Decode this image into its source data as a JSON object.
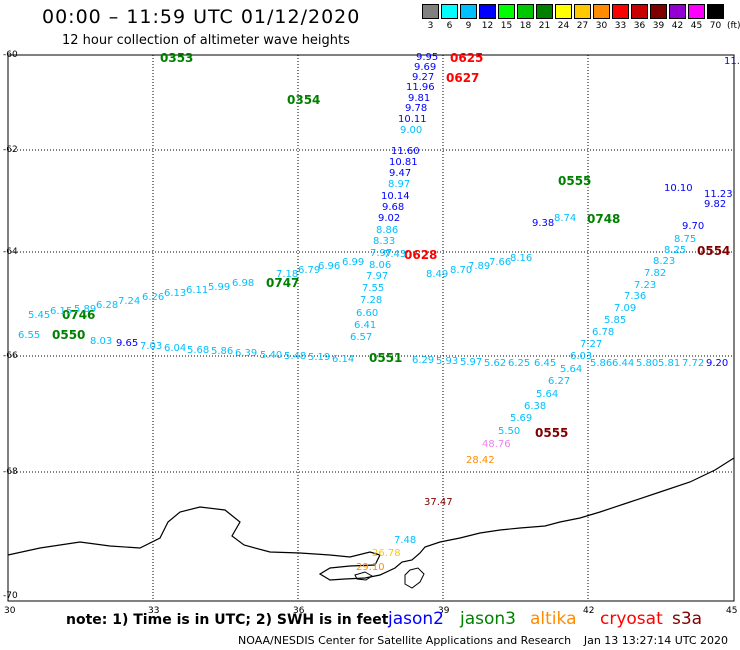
{
  "title": "00:00 – 11:59 UTC 01/12/2020",
  "subtitle": "12 hour collection of altimeter wave heights",
  "legend": {
    "unit": "(ft)",
    "levels": [
      {
        "label": "3",
        "color": "#808080"
      },
      {
        "label": "6",
        "color": "#00ffff"
      },
      {
        "label": "9",
        "color": "#00bfff"
      },
      {
        "label": "12",
        "color": "#0000ff"
      },
      {
        "label": "15",
        "color": "#00ff00"
      },
      {
        "label": "18",
        "color": "#00c800"
      },
      {
        "label": "21",
        "color": "#008000"
      },
      {
        "label": "24",
        "color": "#ffff00"
      },
      {
        "label": "27",
        "color": "#ffc800"
      },
      {
        "label": "30",
        "color": "#ff8c00"
      },
      {
        "label": "33",
        "color": "#ff0000"
      },
      {
        "label": "36",
        "color": "#c80000"
      },
      {
        "label": "39",
        "color": "#800000"
      },
      {
        "label": "42",
        "color": "#9400d3"
      },
      {
        "label": "45",
        "color": "#ff00ff"
      },
      {
        "label": "70",
        "color": "#000000"
      }
    ]
  },
  "axes": {
    "lat_labels": [
      "-60",
      "-62",
      "-64",
      "-66",
      "-68",
      "-70"
    ],
    "lon_labels": [
      "30",
      "33",
      "36",
      "39",
      "42",
      "45"
    ]
  },
  "note": "note: 1) Time is in UTC; 2) SWH is in feet",
  "satellites": [
    {
      "name": "jason2",
      "color": "#0000ff"
    },
    {
      "name": "jason3",
      "color": "#008000"
    },
    {
      "name": "altika",
      "color": "#ff8c00"
    },
    {
      "name": "cryosat",
      "color": "#ff0000"
    },
    {
      "name": "s3a",
      "color": "#800000"
    }
  ],
  "footer": {
    "credit": "NOAA/NESDIS Center for Satellite Applications and Research",
    "timestamp": "Jan 13 13:27:14 UTC 2020"
  },
  "time_labels": [
    {
      "text": "0353",
      "color": "#008000"
    },
    {
      "text": "0354",
      "color": "#008000"
    },
    {
      "text": "0555",
      "color": "#008000"
    },
    {
      "text": "0748",
      "color": "#008000"
    },
    {
      "text": "0747",
      "color": "#008000"
    },
    {
      "text": "0746",
      "color": "#008000"
    },
    {
      "text": "0550",
      "color": "#008000"
    },
    {
      "text": "0551",
      "color": "#008000"
    },
    {
      "text": "0625",
      "color": "#ff0000"
    },
    {
      "text": "0627",
      "color": "#ff0000"
    },
    {
      "text": "0628",
      "color": "#ff0000"
    },
    {
      "text": "0554",
      "color": "#800000"
    },
    {
      "text": "0555",
      "color": "#800000"
    }
  ],
  "wave_values": [
    {
      "text": "9.95",
      "color": "#0000ff"
    },
    {
      "text": "9.69",
      "color": "#0000ff"
    },
    {
      "text": "9.27",
      "color": "#0000ff"
    },
    {
      "text": "11.96",
      "color": "#0000ff"
    },
    {
      "text": "9.81",
      "color": "#0000ff"
    },
    {
      "text": "9.78",
      "color": "#0000ff"
    },
    {
      "text": "10.11",
      "color": "#0000ff"
    },
    {
      "text": "9.00",
      "color": "#00bfff"
    },
    {
      "text": "11.60",
      "color": "#0000ff"
    },
    {
      "text": "10.81",
      "color": "#0000ff"
    },
    {
      "text": "9.47",
      "color": "#0000ff"
    },
    {
      "text": "8.97",
      "color": "#00bfff"
    },
    {
      "text": "10.14",
      "color": "#0000ff"
    },
    {
      "text": "9.68",
      "color": "#0000ff"
    },
    {
      "text": "9.02",
      "color": "#0000ff"
    },
    {
      "text": "8.86",
      "color": "#00bfff"
    },
    {
      "text": "8.33",
      "color": "#00bfff"
    },
    {
      "text": "7.97",
      "color": "#00bfff"
    },
    {
      "text": "8.06",
      "color": "#00bfff"
    },
    {
      "text": "7.97",
      "color": "#00bfff"
    },
    {
      "text": "7.55",
      "color": "#00bfff"
    },
    {
      "text": "7.28",
      "color": "#00bfff"
    },
    {
      "text": "6.60",
      "color": "#00bfff"
    },
    {
      "text": "6.41",
      "color": "#00bfff"
    },
    {
      "text": "6.57",
      "color": "#00bfff"
    },
    {
      "text": "7.43",
      "color": "#00bfff"
    },
    {
      "text": "8.49",
      "color": "#00bfff"
    },
    {
      "text": "8.70",
      "color": "#00bfff"
    },
    {
      "text": "7.89",
      "color": "#00bfff"
    },
    {
      "text": "7.66",
      "color": "#00bfff"
    },
    {
      "text": "8.16",
      "color": "#00bfff"
    },
    {
      "text": "9.38",
      "color": "#0000ff"
    },
    {
      "text": "8.74",
      "color": "#00bfff"
    },
    {
      "text": "6.96",
      "color": "#00bfff"
    },
    {
      "text": "6.99",
      "color": "#00bfff"
    },
    {
      "text": "6.79",
      "color": "#00bfff"
    },
    {
      "text": "7.18",
      "color": "#00bfff"
    },
    {
      "text": "6.98",
      "color": "#00bfff"
    },
    {
      "text": "5.99",
      "color": "#00bfff"
    },
    {
      "text": "6.11",
      "color": "#00bfff"
    },
    {
      "text": "6.13",
      "color": "#00bfff"
    },
    {
      "text": "6.26",
      "color": "#00bfff"
    },
    {
      "text": "7.24",
      "color": "#00bfff"
    },
    {
      "text": "6.28",
      "color": "#00bfff"
    },
    {
      "text": "5.89",
      "color": "#00bfff"
    },
    {
      "text": "6.15",
      "color": "#00bfff"
    },
    {
      "text": "5.45",
      "color": "#00bfff"
    },
    {
      "text": "6.55",
      "color": "#00bfff"
    },
    {
      "text": "8.03",
      "color": "#00bfff"
    },
    {
      "text": "9.65",
      "color": "#0000ff"
    },
    {
      "text": "7.03",
      "color": "#00bfff"
    },
    {
      "text": "6.04",
      "color": "#00bfff"
    },
    {
      "text": "5.68",
      "color": "#00bfff"
    },
    {
      "text": "5.86",
      "color": "#00bfff"
    },
    {
      "text": "6.39",
      "color": "#00bfff"
    },
    {
      "text": "5.40",
      "color": "#00bfff"
    },
    {
      "text": "5.48",
      "color": "#00bfff"
    },
    {
      "text": "5.19",
      "color": "#00bfff"
    },
    {
      "text": "6.14",
      "color": "#00bfff"
    },
    {
      "text": "6.29",
      "color": "#00bfff"
    },
    {
      "text": "5.93",
      "color": "#00bfff"
    },
    {
      "text": "5.97",
      "color": "#00bfff"
    },
    {
      "text": "5.62",
      "color": "#00bfff"
    },
    {
      "text": "6.25",
      "color": "#00bfff"
    },
    {
      "text": "6.45",
      "color": "#00bfff"
    },
    {
      "text": "5.86",
      "color": "#00bfff"
    },
    {
      "text": "6.44",
      "color": "#00bfff"
    },
    {
      "text": "5.80",
      "color": "#00bfff"
    },
    {
      "text": "5.81",
      "color": "#00bfff"
    },
    {
      "text": "7.72",
      "color": "#00bfff"
    },
    {
      "text": "9.20",
      "color": "#0000ff"
    },
    {
      "text": "8.75",
      "color": "#00bfff"
    },
    {
      "text": "8.25",
      "color": "#00bfff"
    },
    {
      "text": "8.23",
      "color": "#00bfff"
    },
    {
      "text": "7.82",
      "color": "#00bfff"
    },
    {
      "text": "7.23",
      "color": "#00bfff"
    },
    {
      "text": "7.36",
      "color": "#00bfff"
    },
    {
      "text": "7.09",
      "color": "#00bfff"
    },
    {
      "text": "5.85",
      "color": "#00bfff"
    },
    {
      "text": "6.78",
      "color": "#00bfff"
    },
    {
      "text": "7.27",
      "color": "#00bfff"
    },
    {
      "text": "6.03",
      "color": "#00bfff"
    },
    {
      "text": "5.64",
      "color": "#00bfff"
    },
    {
      "text": "6.27",
      "color": "#00bfff"
    },
    {
      "text": "5.64",
      "color": "#00bfff"
    },
    {
      "text": "6.38",
      "color": "#00bfff"
    },
    {
      "text": "5.69",
      "color": "#00bfff"
    },
    {
      "text": "5.50",
      "color": "#00bfff"
    },
    {
      "text": "48.76",
      "color": "#ee82ee"
    },
    {
      "text": "28.42",
      "color": "#ff8c00"
    },
    {
      "text": "37.47",
      "color": "#800000"
    },
    {
      "text": "7.48",
      "color": "#00bfff"
    },
    {
      "text": "26.78",
      "color": "#ffc800"
    },
    {
      "text": "29.10",
      "color": "#ff8c00"
    },
    {
      "text": "9.82",
      "color": "#0000ff"
    },
    {
      "text": "11.23",
      "color": "#0000ff"
    },
    {
      "text": "9.70",
      "color": "#0000ff"
    },
    {
      "text": "10.10",
      "color": "#0000ff"
    },
    {
      "text": "11.",
      "color": "#0000ff"
    }
  ]
}
